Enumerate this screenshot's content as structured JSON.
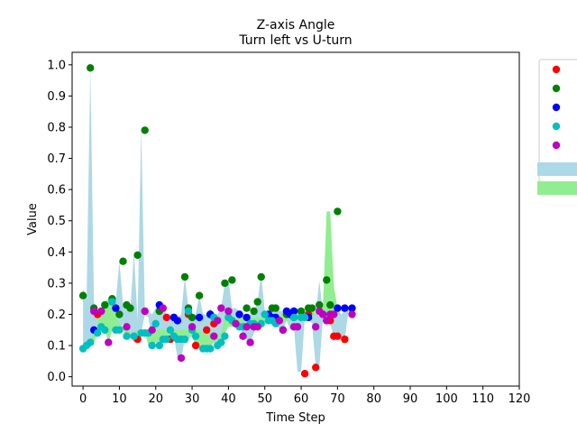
{
  "chart_data": {
    "type": "scatter",
    "title": "Z-axis Angle",
    "subtitle": "Turn left vs U-turn",
    "xlabel": "Time Step",
    "ylabel": "Value",
    "xlim": [
      -3,
      120
    ],
    "ylim": [
      -0.03,
      1.04
    ],
    "xticks": [
      0,
      10,
      20,
      30,
      40,
      50,
      60,
      70,
      80,
      90,
      100,
      110,
      120
    ],
    "yticks": [
      0.0,
      0.1,
      0.2,
      0.3,
      0.4,
      0.5,
      0.6,
      0.7,
      0.8,
      0.9,
      1.0
    ],
    "grid": false,
    "legend_position": "outside-right",
    "bands": [
      {
        "color": "#add8e6",
        "x": [
          0,
          1,
          2,
          3,
          4,
          5,
          6,
          7,
          8,
          9,
          10,
          11,
          12,
          13,
          14,
          15,
          16,
          17,
          18,
          19,
          20,
          21,
          22,
          23,
          24,
          25,
          26,
          27,
          28,
          29,
          30,
          31,
          32,
          33,
          34,
          35,
          36,
          37,
          38,
          39,
          40,
          41,
          42,
          43,
          44,
          45,
          46,
          47,
          48,
          49,
          50,
          51,
          52,
          53,
          54,
          55,
          56,
          57,
          58,
          59,
          60,
          61,
          62,
          63,
          64,
          65,
          66,
          67,
          68,
          69,
          70,
          71,
          72,
          73,
          74
        ],
        "lower": [
          0.09,
          0.1,
          0.11,
          0.14,
          0.15,
          0.16,
          0.15,
          0.11,
          0.15,
          0.15,
          0.15,
          0.17,
          0.12,
          0.13,
          0.11,
          0.12,
          0.14,
          0.2,
          0.19,
          0.1,
          0.11,
          0.11,
          0.12,
          0.12,
          0.15,
          0.13,
          0.06,
          0.06,
          0.12,
          0.12,
          0.13,
          0.1,
          0.15,
          0.09,
          0.09,
          0.1,
          0.11,
          0.11,
          0.1,
          0.16,
          0.19,
          0.2,
          0.16,
          0.17,
          0.13,
          0.12,
          0.11,
          0.14,
          0.16,
          0.16,
          0.17,
          0.18,
          0.19,
          0.17,
          0.15,
          0.15,
          0.18,
          0.15,
          0.16,
          0.015,
          0.015,
          0.19,
          0.19,
          0.17,
          0.03,
          0.03,
          0.19,
          0.18,
          0.17,
          0.13,
          0.13,
          0.12,
          0.12,
          0.21,
          0.19
        ],
        "upper": [
          0.28,
          0.26,
          0.99,
          0.24,
          0.2,
          0.21,
          0.21,
          0.25,
          0.24,
          0.24,
          0.37,
          0.23,
          0.23,
          0.21,
          0.4,
          0.18,
          0.8,
          0.2,
          0.21,
          0.2,
          0.22,
          0.23,
          0.23,
          0.2,
          0.19,
          0.19,
          0.19,
          0.2,
          0.32,
          0.22,
          0.2,
          0.2,
          0.26,
          0.2,
          0.2,
          0.22,
          0.2,
          0.2,
          0.22,
          0.3,
          0.31,
          0.22,
          0.22,
          0.21,
          0.2,
          0.2,
          0.2,
          0.21,
          0.24,
          0.33,
          0.21,
          0.21,
          0.22,
          0.22,
          0.21,
          0.21,
          0.22,
          0.22,
          0.22,
          0.22,
          0.21,
          0.2,
          0.2,
          0.23,
          0.2,
          0.31,
          0.2,
          0.2,
          0.2,
          0.21,
          0.21,
          0.2,
          0.21,
          0.22,
          0.21
        ]
      },
      {
        "color": "#90ee90",
        "x": [
          0,
          1,
          2,
          3,
          4,
          5,
          6,
          7,
          8,
          9,
          10,
          11,
          12,
          13,
          14,
          15,
          16,
          17,
          18,
          19,
          20,
          21,
          22,
          23,
          24,
          25,
          26,
          27,
          28,
          29,
          30,
          31,
          32,
          33,
          34,
          35,
          36,
          37,
          38,
          39,
          40,
          41,
          42,
          43,
          44,
          45,
          46,
          47,
          48,
          49,
          50,
          51,
          52,
          53,
          54,
          55,
          56,
          57,
          58,
          59,
          60,
          61,
          62,
          63,
          64,
          65,
          66,
          67,
          68,
          69,
          70,
          71,
          72,
          73,
          74
        ],
        "lower": [
          0.09,
          0.1,
          0.11,
          0.11,
          0.14,
          0.15,
          0.15,
          0.11,
          0.15,
          0.15,
          0.15,
          0.15,
          0.12,
          0.13,
          0.13,
          0.14,
          0.14,
          0.14,
          0.1,
          0.1,
          0.11,
          0.12,
          0.12,
          0.12,
          0.13,
          0.13,
          0.12,
          0.12,
          0.12,
          0.13,
          0.13,
          0.1,
          0.09,
          0.09,
          0.09,
          0.1,
          0.11,
          0.11,
          0.13,
          0.14,
          0.16,
          0.16,
          0.16,
          0.17,
          0.17,
          0.15,
          0.15,
          0.16,
          0.17,
          0.17,
          0.17,
          0.18,
          0.18,
          0.18,
          0.18,
          0.17,
          0.18,
          0.18,
          0.18,
          0.19,
          0.19,
          0.19,
          0.19,
          0.19,
          0.2,
          0.2,
          0.2,
          0.2,
          0.2,
          0.2,
          0.2,
          0.2,
          0.2,
          0.2,
          0.2
        ],
        "upper": [
          0.09,
          0.1,
          0.12,
          0.14,
          0.17,
          0.22,
          0.24,
          0.25,
          0.24,
          0.2,
          0.17,
          0.16,
          0.16,
          0.14,
          0.14,
          0.15,
          0.15,
          0.15,
          0.14,
          0.15,
          0.15,
          0.15,
          0.15,
          0.15,
          0.15,
          0.15,
          0.15,
          0.15,
          0.15,
          0.15,
          0.15,
          0.15,
          0.15,
          0.14,
          0.14,
          0.14,
          0.14,
          0.14,
          0.14,
          0.2,
          0.2,
          0.2,
          0.19,
          0.19,
          0.19,
          0.19,
          0.19,
          0.19,
          0.19,
          0.19,
          0.19,
          0.19,
          0.19,
          0.2,
          0.2,
          0.2,
          0.2,
          0.2,
          0.2,
          0.2,
          0.21,
          0.21,
          0.2,
          0.22,
          0.2,
          0.2,
          0.23,
          0.53,
          0.53,
          0.29,
          0.22,
          0.2,
          0.2,
          0.2,
          0.2
        ]
      }
    ],
    "series": [
      {
        "color": "#ff0000",
        "x": [
          4,
          15,
          23,
          24,
          29,
          31,
          34,
          36,
          55,
          58,
          61,
          62,
          64,
          67,
          68,
          69,
          70,
          72
        ],
        "y": [
          0.2,
          0.12,
          0.19,
          0.12,
          0.2,
          0.1,
          0.15,
          0.17,
          0.15,
          0.19,
          0.01,
          0.2,
          0.03,
          0.18,
          0.18,
          0.13,
          0.13,
          0.12
        ]
      },
      {
        "color": "#008000",
        "x": [
          0,
          2,
          3,
          6,
          8,
          10,
          11,
          12,
          13,
          15,
          17,
          21,
          25,
          28,
          29,
          30,
          32,
          35,
          39,
          41,
          45,
          47,
          48,
          49,
          52,
          53,
          56,
          60,
          62,
          63,
          65,
          67,
          68,
          70
        ],
        "y": [
          0.26,
          0.99,
          0.22,
          0.23,
          0.25,
          0.2,
          0.37,
          0.23,
          0.22,
          0.39,
          0.79,
          0.21,
          0.19,
          0.32,
          0.22,
          0.19,
          0.26,
          0.2,
          0.3,
          0.31,
          0.22,
          0.21,
          0.24,
          0.32,
          0.22,
          0.22,
          0.2,
          0.21,
          0.22,
          0.22,
          0.23,
          0.31,
          0.23,
          0.53
        ]
      },
      {
        "color": "#0000ff",
        "x": [
          3,
          9,
          21,
          25,
          26,
          32,
          35,
          43,
          45,
          51,
          52,
          53,
          56,
          57,
          58,
          62,
          70,
          72,
          74
        ],
        "y": [
          0.15,
          0.22,
          0.23,
          0.19,
          0.18,
          0.19,
          0.2,
          0.2,
          0.19,
          0.2,
          0.19,
          0.19,
          0.21,
          0.2,
          0.21,
          0.19,
          0.22,
          0.22,
          0.22
        ]
      },
      {
        "color": "#00bfbf",
        "x": [
          0,
          1,
          2,
          4,
          5,
          6,
          8,
          9,
          10,
          12,
          14,
          16,
          17,
          18,
          19,
          20,
          21,
          22,
          23,
          24,
          25,
          26,
          27,
          28,
          29,
          30,
          31,
          33,
          34,
          35,
          36,
          37,
          38,
          39,
          40,
          41,
          42,
          43,
          44,
          46,
          47,
          49,
          50,
          51,
          52,
          53,
          55,
          58,
          59,
          60,
          61,
          66,
          68
        ],
        "y": [
          0.09,
          0.1,
          0.11,
          0.14,
          0.16,
          0.15,
          0.24,
          0.15,
          0.15,
          0.13,
          0.13,
          0.14,
          0.14,
          0.14,
          0.1,
          0.17,
          0.1,
          0.12,
          0.12,
          0.15,
          0.13,
          0.12,
          0.12,
          0.12,
          0.21,
          0.15,
          0.13,
          0.09,
          0.09,
          0.09,
          0.19,
          0.1,
          0.11,
          0.13,
          0.19,
          0.18,
          0.17,
          0.16,
          0.16,
          0.17,
          0.17,
          0.17,
          0.2,
          0.18,
          0.18,
          0.17,
          0.15,
          0.19,
          0.16,
          0.19,
          0.19,
          0.2,
          0.2
        ]
      },
      {
        "color": "#bf00bf",
        "x": [
          3,
          5,
          7,
          12,
          17,
          19,
          22,
          27,
          30,
          36,
          37,
          38,
          40,
          42,
          44,
          45,
          46,
          47,
          48,
          54,
          55,
          58,
          59,
          64,
          65,
          66,
          67,
          68,
          69,
          74
        ],
        "y": [
          0.21,
          0.21,
          0.11,
          0.16,
          0.21,
          0.15,
          0.22,
          0.06,
          0.16,
          0.13,
          0.18,
          0.22,
          0.21,
          0.17,
          0.13,
          0.16,
          0.11,
          0.16,
          0.16,
          0.18,
          0.15,
          0.16,
          0.16,
          0.16,
          0.21,
          0.2,
          0.18,
          0.2,
          0.2,
          0.2
        ]
      }
    ],
    "legend": [
      {
        "kind": "marker",
        "color": "#ff0000"
      },
      {
        "kind": "marker",
        "color": "#008000"
      },
      {
        "kind": "marker",
        "color": "#0000ff"
      },
      {
        "kind": "marker",
        "color": "#00bfbf"
      },
      {
        "kind": "marker",
        "color": "#bf00bf"
      },
      {
        "kind": "patch",
        "color": "#add8e6"
      },
      {
        "kind": "patch",
        "color": "#90ee90"
      }
    ]
  }
}
